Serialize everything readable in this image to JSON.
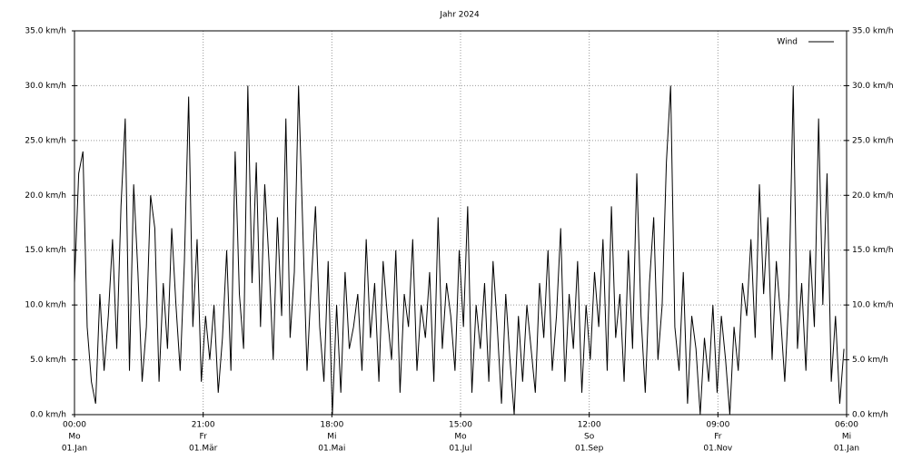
{
  "chart_data": {
    "type": "line",
    "title": "Jahr 2024",
    "x": [
      0,
      48,
      96,
      144,
      192,
      240,
      288,
      336,
      384,
      432,
      480,
      528,
      576,
      624,
      672,
      720,
      768,
      816,
      864,
      912,
      960,
      1008,
      1056,
      1104,
      1152,
      1200,
      1248,
      1296,
      1344,
      1392,
      1440,
      1488,
      1536,
      1584,
      1632,
      1680,
      1728,
      1776,
      1824,
      1872,
      1920,
      1968,
      2016,
      2064,
      2112,
      2160,
      2208,
      2256,
      2304,
      2352,
      2400,
      2448,
      2496,
      2544,
      2592,
      2640,
      2688,
      2736,
      2784,
      2832,
      2880,
      2928,
      2976,
      3024,
      3072,
      3120,
      3168,
      3216,
      3264,
      3312,
      3360,
      3408,
      3456,
      3504,
      3552,
      3600,
      3648,
      3696,
      3744,
      3792,
      3840,
      3888,
      3936,
      3984,
      4032,
      4080,
      4128,
      4176,
      4224,
      4272,
      4320,
      4368,
      4416,
      4464,
      4512,
      4560,
      4608,
      4656,
      4704,
      4752,
      4800,
      4848,
      4896,
      4944,
      4992,
      5040,
      5088,
      5136,
      5184,
      5232,
      5280,
      5328,
      5376,
      5424,
      5472,
      5520,
      5568,
      5616,
      5664,
      5712,
      5760,
      5808,
      5856,
      5904,
      5952,
      6000,
      6048,
      6096,
      6144,
      6192,
      6240,
      6288,
      6336,
      6384,
      6432,
      6480,
      6528,
      6576,
      6624,
      6672,
      6720,
      6768,
      6816,
      6864,
      6912,
      6960,
      7008,
      7056,
      7104,
      7152,
      7200,
      7248,
      7296,
      7344,
      7392,
      7440,
      7488,
      7536,
      7584,
      7632,
      7680,
      7728,
      7776,
      7824,
      7872,
      7920,
      7968,
      8016,
      8064,
      8112,
      8160,
      8208,
      8256,
      8304,
      8352,
      8400,
      8448,
      8496,
      8544,
      8592,
      8640,
      8688,
      8736
    ],
    "series": [
      {
        "name": "Wind",
        "color": "#000000",
        "values": [
          12,
          22,
          24,
          8,
          3,
          1,
          11,
          4,
          9,
          16,
          6,
          19,
          27,
          4,
          21,
          13,
          3,
          8,
          20,
          17,
          3,
          12,
          6,
          17,
          10,
          4,
          14,
          29,
          8,
          16,
          3,
          9,
          5,
          10,
          2,
          7,
          15,
          4,
          24,
          11,
          6,
          30,
          12,
          23,
          8,
          21,
          14,
          5,
          18,
          9,
          27,
          7,
          13,
          30,
          17,
          4,
          12,
          19,
          8,
          3,
          14,
          0,
          10,
          2,
          13,
          6,
          8,
          11,
          4,
          16,
          7,
          12,
          3,
          14,
          9,
          5,
          15,
          2,
          11,
          8,
          16,
          4,
          10,
          7,
          13,
          3,
          18,
          6,
          12,
          9,
          4,
          15,
          8,
          19,
          2,
          10,
          6,
          12,
          3,
          14,
          8,
          1,
          11,
          5,
          0,
          9,
          3,
          10,
          6,
          2,
          12,
          7,
          15,
          4,
          9,
          17,
          3,
          11,
          6,
          14,
          2,
          10,
          5,
          13,
          8,
          16,
          4,
          19,
          7,
          11,
          3,
          15,
          6,
          22,
          9,
          2,
          12,
          18,
          5,
          10,
          23,
          30,
          8,
          4,
          13,
          1,
          9,
          6,
          0,
          7,
          3,
          10,
          2,
          9,
          5,
          0,
          8,
          4,
          12,
          9,
          16,
          7,
          21,
          11,
          18,
          5,
          14,
          9,
          3,
          11,
          30,
          6,
          12,
          4,
          15,
          8,
          27,
          10,
          22,
          3,
          9,
          1,
          6
        ]
      }
    ],
    "xlim": [
      0,
      8766
    ],
    "xticks": [
      {
        "value": 0,
        "label": "00:00",
        "weekday": "Mo",
        "date": "01.Jan"
      },
      {
        "value": 1461,
        "label": "21:00",
        "weekday": "Fr",
        "date": "01.Mär"
      },
      {
        "value": 2922,
        "label": "18:00",
        "weekday": "Mi",
        "date": "01.Mai"
      },
      {
        "value": 4383,
        "label": "15:00",
        "weekday": "Mo",
        "date": "01.Jul"
      },
      {
        "value": 5844,
        "label": "12:00",
        "weekday": "So",
        "date": "01.Sep"
      },
      {
        "value": 7305,
        "label": "09:00",
        "weekday": "Fr",
        "date": "01.Nov"
      },
      {
        "value": 8766,
        "label": "06:00",
        "weekday": "Mi",
        "date": "01.Jan"
      }
    ],
    "ylim": [
      0,
      35
    ],
    "yticks": [
      {
        "value": 0,
        "label": "0.0 km/h"
      },
      {
        "value": 5,
        "label": "5.0 km/h"
      },
      {
        "value": 10,
        "label": "10.0 km/h"
      },
      {
        "value": 15,
        "label": "15.0 km/h"
      },
      {
        "value": 20,
        "label": "20.0 km/h"
      },
      {
        "value": 25,
        "label": "25.0 km/h"
      },
      {
        "value": 30,
        "label": "30.0 km/h"
      },
      {
        "value": 35,
        "label": "35.0 km/h"
      }
    ],
    "grid": true,
    "legend": "upper right"
  }
}
